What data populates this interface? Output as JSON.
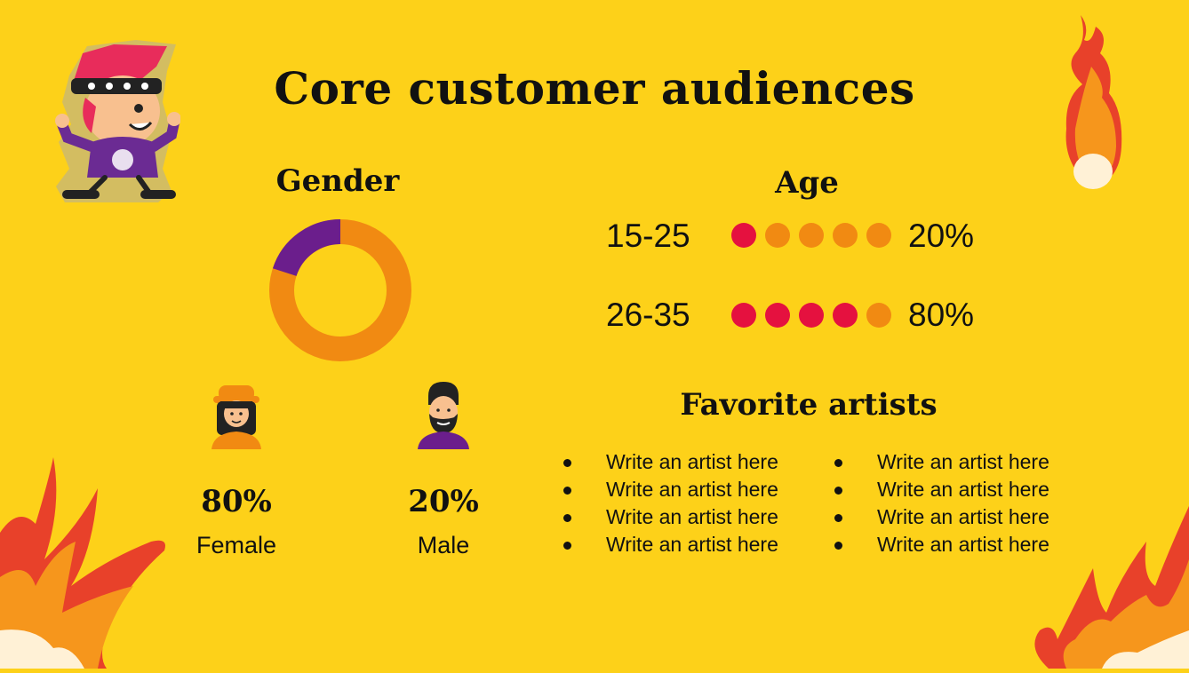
{
  "title": "Core customer audiences",
  "gender": {
    "heading": "Gender",
    "donut": {
      "female_share": 0.8,
      "male_share": 0.2
    },
    "female": {
      "percent": "80%",
      "label": "Female"
    },
    "male": {
      "percent": "20%",
      "label": "Male"
    }
  },
  "age": {
    "heading": "Age",
    "groups": [
      {
        "range": "15-25",
        "percent": "20%",
        "filled_dots": 1,
        "total_dots": 5
      },
      {
        "range": "26-35",
        "percent": "80%",
        "filled_dots": 4,
        "total_dots": 5
      }
    ]
  },
  "artists": {
    "heading": "Favorite artists",
    "left": [
      "Write an artist here",
      "Write an artist here",
      "Write an artist here",
      "Write an artist here"
    ],
    "right": [
      "Write an artist here",
      "Write an artist here",
      "Write an artist here",
      "Write an artist here"
    ]
  },
  "colors": {
    "background": "#FDD119",
    "orange": "#F18A12",
    "purple": "#6B1E8C",
    "red_dot": "#E5113F"
  },
  "icons": {
    "mascot": "rocker-mascot-icon",
    "female": "female-avatar-icon",
    "male": "male-avatar-icon",
    "flame": "flame-icon"
  }
}
